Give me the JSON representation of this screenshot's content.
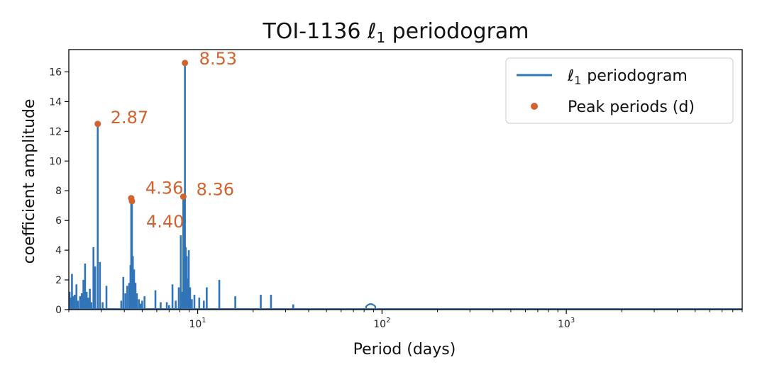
{
  "chart_data": {
    "type": "line",
    "title": "TOI-1136 ℓ1 periodogram",
    "xlabel": "Period (days)",
    "ylabel": "coefficient amplitude",
    "xscale": "log",
    "xlim": [
      2.0,
      9000
    ],
    "ylim": [
      0,
      17.5
    ],
    "grid": false,
    "legend_position": "top-right",
    "colors": {
      "line": "#3174b8",
      "peak": "#d2622e",
      "axis": "#000000"
    },
    "xticks": [
      {
        "value": 10,
        "base": "10",
        "exp": "1"
      },
      {
        "value": 100,
        "base": "10",
        "exp": "2"
      },
      {
        "value": 1000,
        "base": "10",
        "exp": "3"
      }
    ],
    "yticks": [
      0,
      2,
      4,
      6,
      8,
      10,
      12,
      14,
      16
    ],
    "series": [
      {
        "name": "ℓ1 periodogram",
        "kind": "line",
        "spikes": [
          [
            2.02,
            1.2
          ],
          [
            2.05,
            0.8
          ],
          [
            2.08,
            2.4
          ],
          [
            2.12,
            0.9
          ],
          [
            2.15,
            1.0
          ],
          [
            2.2,
            1.7
          ],
          [
            2.24,
            0.6
          ],
          [
            2.3,
            0.9
          ],
          [
            2.35,
            1.1
          ],
          [
            2.4,
            2.0
          ],
          [
            2.45,
            3.1
          ],
          [
            2.5,
            1.2
          ],
          [
            2.55,
            0.8
          ],
          [
            2.6,
            1.4
          ],
          [
            2.65,
            0.5
          ],
          [
            2.72,
            4.2
          ],
          [
            2.78,
            2.9
          ],
          [
            2.87,
            12.5
          ],
          [
            2.95,
            3.2
          ],
          [
            3.05,
            0.5
          ],
          [
            3.2,
            1.6
          ],
          [
            3.5,
            0.1
          ],
          [
            3.85,
            0.6
          ],
          [
            3.95,
            2.2
          ],
          [
            4.05,
            1.1
          ],
          [
            4.15,
            1.6
          ],
          [
            4.25,
            1.8
          ],
          [
            4.32,
            3.0
          ],
          [
            4.36,
            7.5
          ],
          [
            4.4,
            7.3
          ],
          [
            4.45,
            3.6
          ],
          [
            4.52,
            2.7
          ],
          [
            4.6,
            1.8
          ],
          [
            4.68,
            1.1
          ],
          [
            4.8,
            0.7
          ],
          [
            4.9,
            0.4
          ],
          [
            5.0,
            0.6
          ],
          [
            5.15,
            0.9
          ],
          [
            5.9,
            1.3
          ],
          [
            6.3,
            0.5
          ],
          [
            6.8,
            0.5
          ],
          [
            7.0,
            0.3
          ],
          [
            7.3,
            1.7
          ],
          [
            7.6,
            0.6
          ],
          [
            7.9,
            1.5
          ],
          [
            8.1,
            5.0
          ],
          [
            8.25,
            1.2
          ],
          [
            8.36,
            7.6
          ],
          [
            8.45,
            4.0
          ],
          [
            8.53,
            16.6
          ],
          [
            8.62,
            4.2
          ],
          [
            8.72,
            3.6
          ],
          [
            8.82,
            2.1
          ],
          [
            8.95,
            4.0
          ],
          [
            9.1,
            1.5
          ],
          [
            9.3,
            0.7
          ],
          [
            9.6,
            1.0
          ],
          [
            10.2,
            0.8
          ],
          [
            10.8,
            0.6
          ],
          [
            11.2,
            1.5
          ],
          [
            13.1,
            2.0
          ],
          [
            16.0,
            0.9
          ],
          [
            22.0,
            1.0
          ],
          [
            25.0,
            1.0
          ],
          [
            33.0,
            0.35
          ]
        ],
        "bump": {
          "start": 82,
          "end": 92,
          "height": 0.35
        }
      },
      {
        "name": "Peak periods (d)",
        "kind": "scatter",
        "points": [
          {
            "x": 2.87,
            "y": 12.5,
            "label": "2.87"
          },
          {
            "x": 4.36,
            "y": 7.5,
            "label": "4.36"
          },
          {
            "x": 4.4,
            "y": 7.3,
            "label": "4.40"
          },
          {
            "x": 8.53,
            "y": 16.6,
            "label": "8.53"
          },
          {
            "x": 8.36,
            "y": 7.6,
            "label": "8.36"
          }
        ]
      }
    ]
  },
  "legend": {
    "line_label": "periodogram",
    "line_symbol": "ℓ",
    "line_sub": "1",
    "peak_label": "Peak periods (d)"
  },
  "title_parts": {
    "prefix": "TOI-1136 ",
    "symbol": "ℓ",
    "sub": "1",
    "suffix": " periodogram"
  }
}
